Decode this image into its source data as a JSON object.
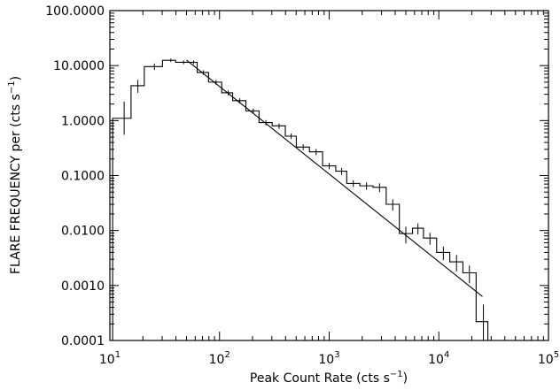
{
  "chart_data": {
    "type": "line",
    "title": "",
    "xlabel": "Peak Count Rate (cts s",
    "xlabel_sup": "−1",
    "xlabel_end": ")",
    "ylabel": "FLARE FREQUENCY per (cts s",
    "ylabel_sup": "−1",
    "ylabel_end": ")",
    "xscale": "log",
    "yscale": "log",
    "xlim": [
      10,
      100000
    ],
    "ylim": [
      0.0001,
      100
    ],
    "grid": false,
    "x_ticks": [
      {
        "value": 10,
        "base": "10",
        "exp": "1"
      },
      {
        "value": 100,
        "base": "10",
        "exp": "2"
      },
      {
        "value": 1000,
        "base": "10",
        "exp": "3"
      },
      {
        "value": 10000,
        "base": "10",
        "exp": "4"
      },
      {
        "value": 100000,
        "base": "10",
        "exp": "5"
      }
    ],
    "y_ticks": [
      {
        "value": 0.0001,
        "label": "0.0001"
      },
      {
        "value": 0.001,
        "label": "0.0010"
      },
      {
        "value": 0.01,
        "label": "0.0100"
      },
      {
        "value": 0.1,
        "label": "0.1000"
      },
      {
        "value": 1,
        "label": "1.0000"
      },
      {
        "value": 10,
        "label": "10.0000"
      },
      {
        "value": 100,
        "label": "100.0000"
      }
    ],
    "series": [
      {
        "kind": "histogram",
        "bin_edges": [
          10.6,
          15.6,
          20.6,
          30.2,
          39.8,
          52.5,
          62.5,
          79.4,
          104.7,
          131.8,
          173.8,
          229.1,
          302,
          398.1,
          501.2,
          660.7,
          871,
          1148,
          1445,
          1905,
          2512,
          3311,
          4365,
          5754,
          7244,
          9550,
          12589,
          16596,
          21878,
          28000
        ],
        "values": [
          1.1,
          4.3,
          9.6,
          12.5,
          11.5,
          11.5,
          7.5,
          5.0,
          3.2,
          2.3,
          1.5,
          0.92,
          0.8,
          0.52,
          0.33,
          0.27,
          0.15,
          0.12,
          0.072,
          0.065,
          0.061,
          0.03,
          0.0088,
          0.011,
          0.0073,
          0.004,
          0.0027,
          0.0017,
          0.00022
        ],
        "error_bars": [
          {
            "x": 13.5,
            "y": 1.1,
            "low": 0.55,
            "high": 2.2
          },
          {
            "x": 18.0,
            "y": 4.3,
            "low": 3.2,
            "high": 5.5
          },
          {
            "x": 25.5,
            "y": 9.6,
            "low": 8.3,
            "high": 10.9
          },
          {
            "x": 36.0,
            "y": 12.5,
            "low": 11.6,
            "high": 13.4
          },
          {
            "x": 47.0,
            "y": 11.5,
            "low": 10.6,
            "high": 12.4
          },
          {
            "x": 58.0,
            "y": 11.5,
            "low": 10.6,
            "high": 12.4
          },
          {
            "x": 71.0,
            "y": 7.5,
            "low": 6.8,
            "high": 8.2
          },
          {
            "x": 93.0,
            "y": 5.0,
            "low": 4.5,
            "high": 5.5
          },
          {
            "x": 120.0,
            "y": 3.2,
            "low": 2.85,
            "high": 3.55
          },
          {
            "x": 153.0,
            "y": 2.3,
            "low": 2.05,
            "high": 2.55
          },
          {
            "x": 203.0,
            "y": 1.5,
            "low": 1.35,
            "high": 1.65
          },
          {
            "x": 265.0,
            "y": 0.92,
            "low": 0.82,
            "high": 1.02
          },
          {
            "x": 349.0,
            "y": 0.8,
            "low": 0.71,
            "high": 0.89
          },
          {
            "x": 450.0,
            "y": 0.52,
            "low": 0.46,
            "high": 0.58
          },
          {
            "x": 580.0,
            "y": 0.33,
            "low": 0.29,
            "high": 0.37
          },
          {
            "x": 760.0,
            "y": 0.27,
            "low": 0.235,
            "high": 0.305
          },
          {
            "x": 1000.0,
            "y": 0.15,
            "low": 0.13,
            "high": 0.17
          },
          {
            "x": 1300.0,
            "y": 0.12,
            "low": 0.103,
            "high": 0.137
          },
          {
            "x": 1660.0,
            "y": 0.072,
            "low": 0.062,
            "high": 0.082
          },
          {
            "x": 2190.0,
            "y": 0.065,
            "low": 0.055,
            "high": 0.075
          },
          {
            "x": 2880.0,
            "y": 0.061,
            "low": 0.05,
            "high": 0.072
          },
          {
            "x": 3800.0,
            "y": 0.03,
            "low": 0.023,
            "high": 0.037
          },
          {
            "x": 5000.0,
            "y": 0.0088,
            "low": 0.0058,
            "high": 0.0118
          },
          {
            "x": 6450.0,
            "y": 0.011,
            "low": 0.0085,
            "high": 0.0135
          },
          {
            "x": 8300.0,
            "y": 0.0073,
            "low": 0.0055,
            "high": 0.0091
          },
          {
            "x": 11000.0,
            "y": 0.004,
            "low": 0.0029,
            "high": 0.0051
          },
          {
            "x": 14500.0,
            "y": 0.0027,
            "low": 0.0018,
            "high": 0.0036
          },
          {
            "x": 19000.0,
            "y": 0.0017,
            "low": 0.0011,
            "high": 0.0023
          },
          {
            "x": 25500.0,
            "y": 0.00022,
            "low": 0.0001,
            "high": 0.00045
          }
        ]
      },
      {
        "kind": "fit_line",
        "points": [
          [
            50,
            12.6
          ],
          [
            25000,
            0.00063
          ]
        ]
      }
    ]
  }
}
